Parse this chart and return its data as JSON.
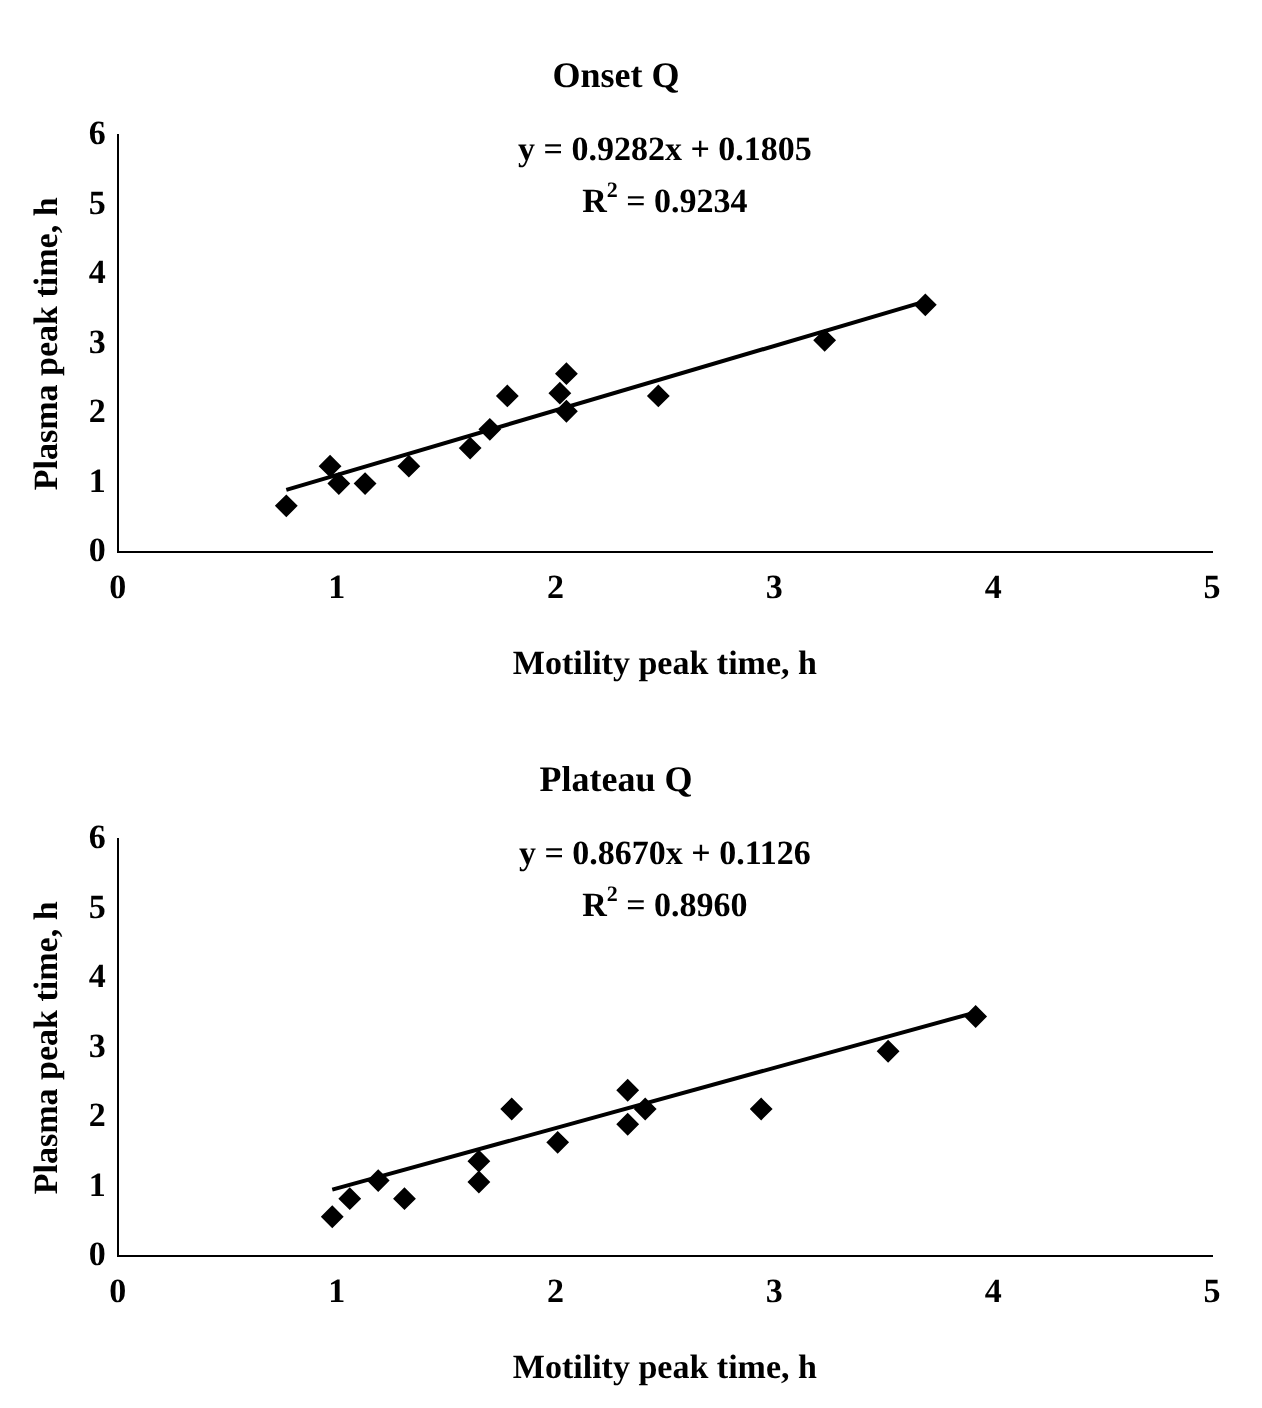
{
  "chart_data": [
    {
      "type": "scatter",
      "title": "Onset Q",
      "xlabel": "Motility peak time, h",
      "ylabel": "Plasma peak time, h",
      "annotations": [
        "y = 0.9282x + 0.1805",
        "R$^{2}$ = 0.9234"
      ],
      "series": [
        {
          "type": "scatter",
          "color": "#000000",
          "marker": "diamond",
          "x": [
            0.77,
            0.97,
            1.01,
            1.13,
            1.33,
            1.61,
            1.7,
            1.78,
            2.02,
            2.05,
            2.05,
            2.47,
            3.23,
            3.69
          ],
          "values": [
            0.67,
            1.24,
            0.99,
            0.99,
            1.24,
            1.5,
            1.77,
            2.25,
            2.29,
            2.57,
            2.03,
            2.25,
            3.05,
            3.56
          ]
        },
        {
          "type": "line",
          "color": "#000000",
          "marker": "none",
          "x": [
            0.77,
            3.69
          ],
          "values": [
            0.9,
            3.61
          ]
        }
      ],
      "xlim": [
        0,
        5
      ],
      "ylim": [
        0,
        6
      ],
      "xticks": [
        0,
        1,
        2,
        3,
        4,
        5
      ],
      "yticks": [
        0,
        1,
        2,
        3,
        4,
        5,
        6
      ],
      "grid": false,
      "legend": false
    },
    {
      "type": "scatter",
      "title": "Plateau Q",
      "xlabel": "Motility peak time, h",
      "ylabel": "Plasma peak time, h",
      "annotations": [
        "y = 0.8670x + 0.1126",
        "R$^{2}$ = 0.8960"
      ],
      "series": [
        {
          "type": "scatter",
          "color": "#000000",
          "marker": "diamond",
          "x": [
            0.98,
            1.06,
            1.19,
            1.31,
            1.65,
            1.65,
            1.8,
            2.01,
            2.33,
            2.33,
            2.41,
            2.94,
            3.52,
            3.92
          ],
          "values": [
            0.57,
            0.83,
            1.09,
            0.83,
            1.37,
            1.07,
            2.12,
            1.64,
            2.39,
            1.9,
            2.12,
            2.12,
            2.95,
            3.45
          ]
        },
        {
          "type": "line",
          "color": "#000000",
          "marker": "none",
          "x": [
            0.98,
            3.92
          ],
          "values": [
            0.96,
            3.51
          ]
        }
      ],
      "xlim": [
        0,
        5
      ],
      "ylim": [
        0,
        6
      ],
      "xticks": [
        0,
        1,
        2,
        3,
        4,
        5
      ],
      "yticks": [
        0,
        1,
        2,
        3,
        4,
        5,
        6
      ],
      "grid": false,
      "legend": false
    }
  ]
}
